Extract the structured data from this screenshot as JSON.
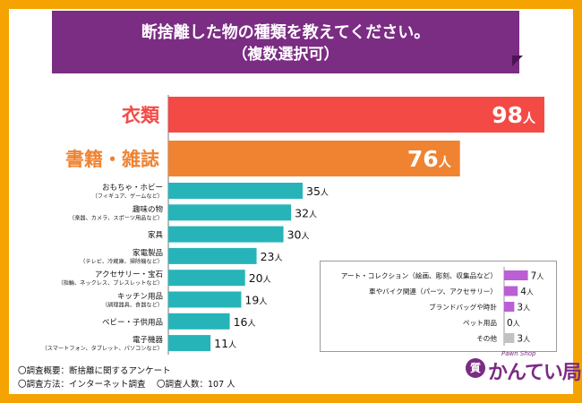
{
  "title": {
    "line1": "断捨離した物の種類を教えてください。",
    "line2": "（複数選択可）"
  },
  "colors": {
    "background": "#f5a300",
    "banner": "#7b2c83",
    "top1": "#f44a45",
    "top2": "#ef8332",
    "rest": "#27b4b9",
    "legend_purple": "#bc5ed6",
    "legend_gray": "#c2c2c2"
  },
  "unit": "人",
  "chart_data": {
    "type": "bar",
    "orientation": "horizontal",
    "title": "断捨離した物の種類を教えてください。（複数選択可）",
    "xlabel": "",
    "ylabel": "",
    "xlim": [
      0,
      98
    ],
    "main_bars": [
      {
        "label": "衣類",
        "sublabel": "",
        "value": 98,
        "color": "#f44a45",
        "big": true
      },
      {
        "label": "書籍・雑誌",
        "sublabel": "",
        "value": 76,
        "color": "#ef8332",
        "big": true
      },
      {
        "label": "おもちゃ・ホビー",
        "sublabel": "（フィギュア、ゲームなど）",
        "value": 35,
        "color": "#27b4b9",
        "big": false
      },
      {
        "label": "趣味の物",
        "sublabel": "（楽器、カメラ、スポーツ用品など）",
        "value": 32,
        "color": "#27b4b9",
        "big": false
      },
      {
        "label": "家具",
        "sublabel": "",
        "value": 30,
        "color": "#27b4b9",
        "big": false
      },
      {
        "label": "家電製品",
        "sublabel": "（テレビ、冷蔵庫、掃除機など）",
        "value": 23,
        "color": "#27b4b9",
        "big": false
      },
      {
        "label": "アクセサリー・宝石",
        "sublabel": "（指輪、ネックレス、ブレスレットなど）",
        "value": 20,
        "color": "#27b4b9",
        "big": false
      },
      {
        "label": "キッチン用品",
        "sublabel": "（調理器具、食器など）",
        "value": 19,
        "color": "#27b4b9",
        "big": false
      },
      {
        "label": "ベビー・子供用品",
        "sublabel": "",
        "value": 16,
        "color": "#27b4b9",
        "big": false
      },
      {
        "label": "電子機器",
        "sublabel": "（スマートフォン、タブレット、パソコンなど）",
        "value": 11,
        "color": "#27b4b9",
        "big": false
      }
    ],
    "legend_bars": [
      {
        "label": "アート・コレクション（絵画、彫刻、収集品など）",
        "value": 7,
        "color": "#bc5ed6"
      },
      {
        "label": "車やバイク関連（パーツ、アクセサリー）",
        "value": 4,
        "color": "#bc5ed6"
      },
      {
        "label": "ブランドバッグや時計",
        "value": 3,
        "color": "#bc5ed6"
      },
      {
        "label": "ペット用品",
        "value": 0,
        "color": "#bc5ed6"
      },
      {
        "label": "その他",
        "value": 3,
        "color": "#c2c2c2"
      }
    ]
  },
  "footer": {
    "survey_overview": "〇調査概要：断捨離に関するアンケート",
    "survey_method": "〇調査方法：インターネット調査",
    "respondents": "〇調査人数：107 人"
  },
  "logo": {
    "mark": "質",
    "tagline": "Pawn Shop",
    "name": "かんてい局"
  }
}
